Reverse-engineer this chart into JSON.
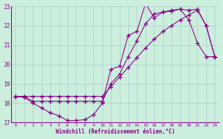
{
  "bg_color": "#cceedd",
  "grid_color": "#aacccc",
  "line_color": "#880088",
  "xlim": [
    -0.5,
    23.5
  ],
  "ylim": [
    17,
    23
  ],
  "yticks": [
    17,
    18,
    19,
    20,
    21,
    22,
    23
  ],
  "xticks": [
    0,
    1,
    2,
    3,
    4,
    5,
    6,
    7,
    8,
    9,
    10,
    11,
    12,
    13,
    14,
    15,
    16,
    17,
    18,
    19,
    20,
    21,
    22,
    23
  ],
  "xlabel": "Windchill (Refroidissement éolien,°C)",
  "line1_x": [
    0,
    1,
    2,
    3,
    4,
    5,
    6,
    7,
    8,
    9,
    10,
    11,
    12,
    13,
    14,
    15,
    16,
    17,
    18,
    19,
    20,
    21,
    22,
    23
  ],
  "line1_y": [
    18.35,
    18.3,
    18.0,
    17.75,
    17.5,
    17.35,
    17.1,
    17.1,
    17.15,
    17.4,
    18.0,
    19.75,
    19.9,
    21.5,
    21.7,
    23.15,
    22.4,
    22.7,
    22.75,
    22.85,
    22.3,
    21.1,
    20.4,
    20.4
  ],
  "line2_x": [
    0,
    1,
    2,
    3,
    4,
    5,
    6,
    7,
    8,
    9,
    10,
    11,
    12,
    13,
    14,
    15,
    16,
    17,
    18,
    19,
    20,
    21,
    22,
    23
  ],
  "line2_y": [
    18.35,
    18.35,
    18.35,
    18.35,
    18.35,
    18.35,
    18.35,
    18.35,
    18.35,
    18.35,
    18.35,
    18.85,
    19.35,
    19.85,
    20.35,
    20.85,
    21.3,
    21.7,
    22.0,
    22.3,
    22.55,
    22.8,
    22.0,
    20.4
  ],
  "line3_x": [
    0,
    1,
    2,
    3,
    4,
    5,
    6,
    7,
    8,
    9,
    10,
    11,
    12,
    13,
    14,
    15,
    16,
    17,
    18,
    19,
    20,
    21,
    22,
    23
  ],
  "line3_y": [
    18.35,
    18.35,
    18.1,
    18.1,
    18.1,
    18.1,
    18.1,
    18.1,
    18.1,
    18.1,
    18.1,
    19.0,
    19.5,
    20.4,
    21.2,
    22.1,
    22.6,
    22.7,
    22.8,
    22.85,
    22.8,
    22.85,
    22.0,
    20.4
  ]
}
